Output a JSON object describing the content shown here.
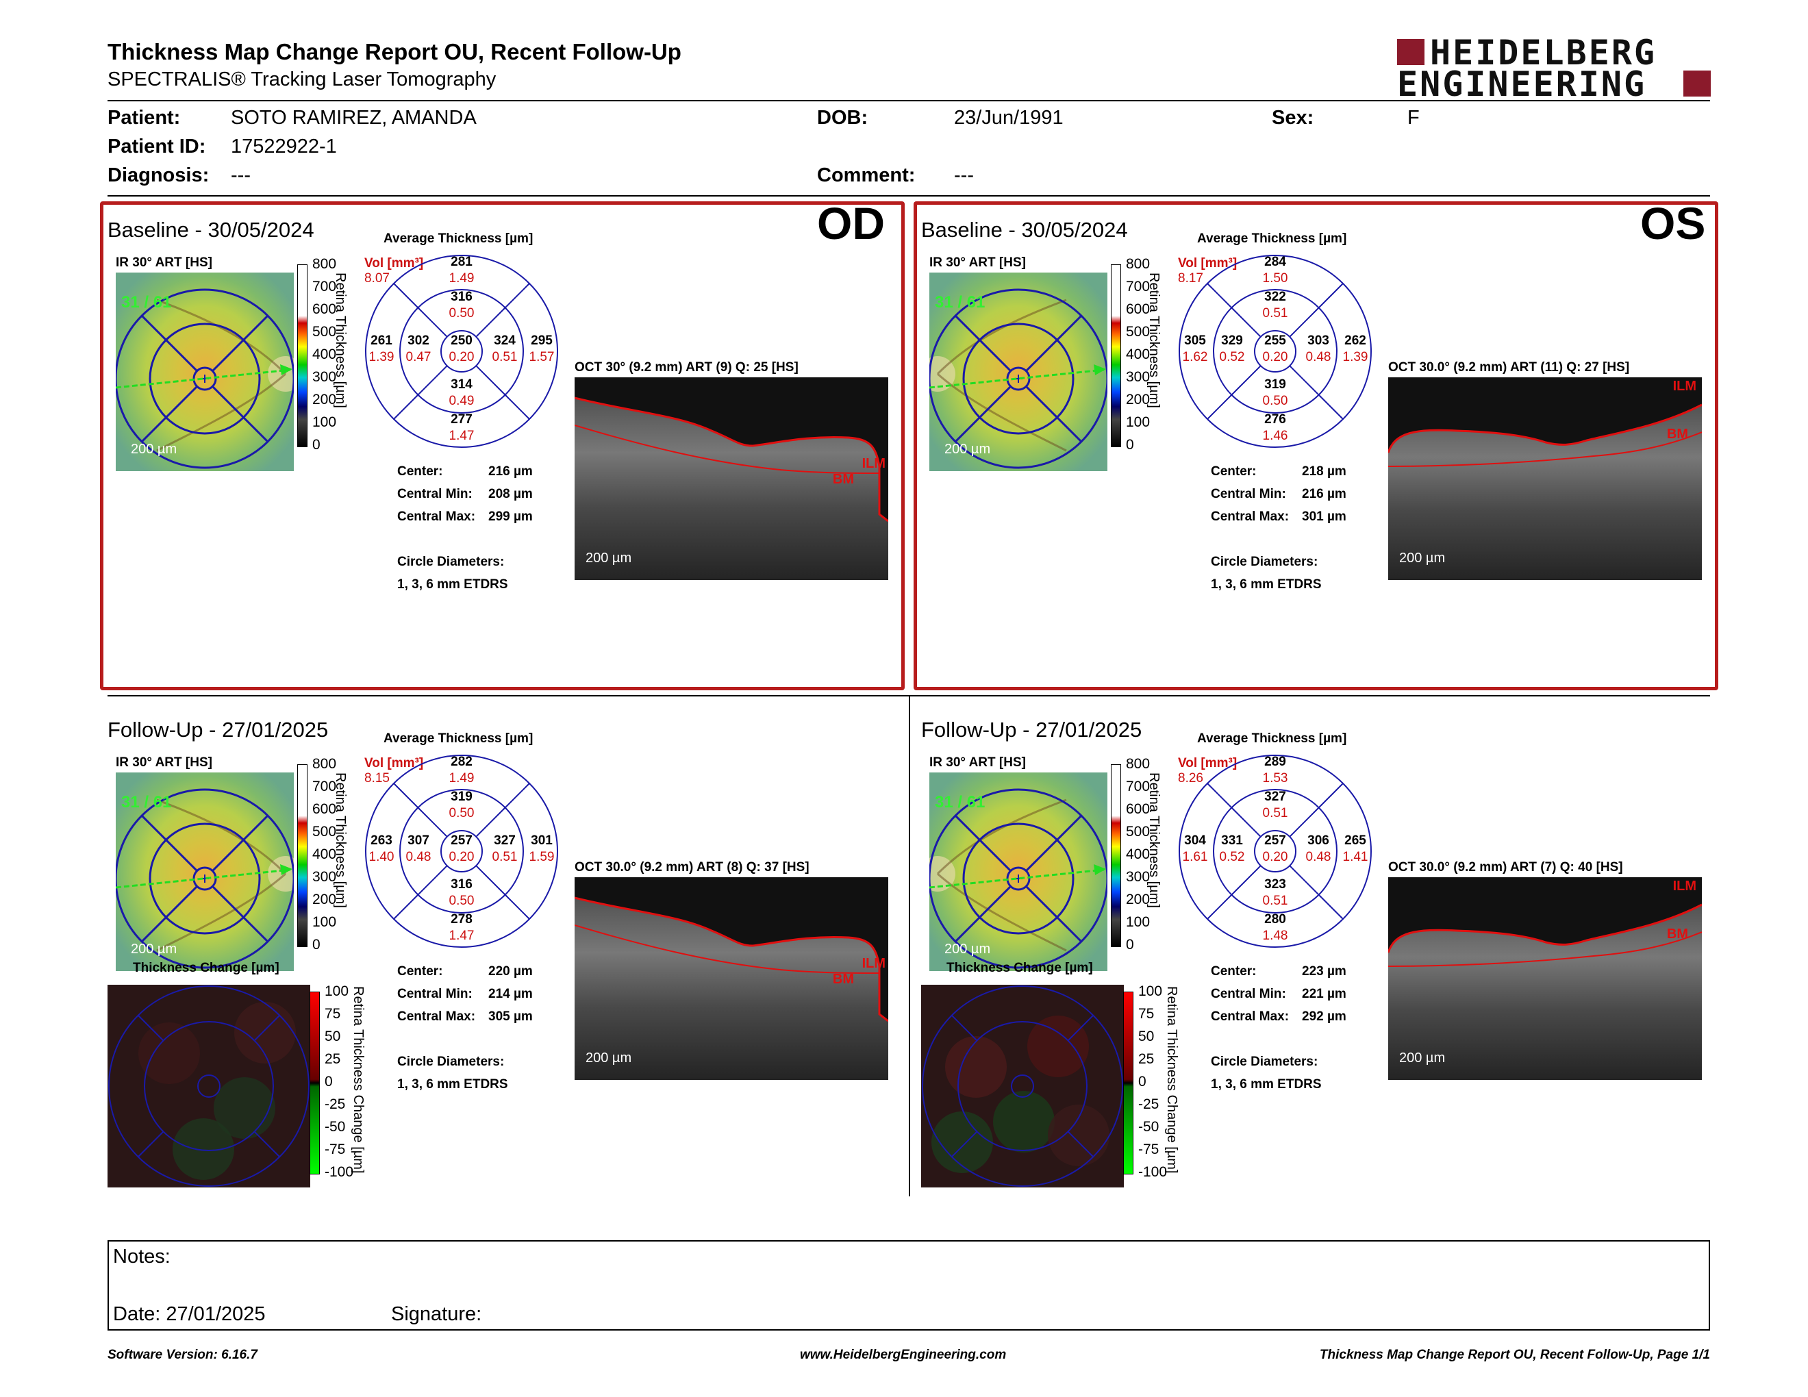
{
  "header": {
    "title": "Thickness Map Change Report OU, Recent Follow-Up",
    "subtitle": "SPECTRALIS® Tracking Laser Tomography",
    "logo_line1": "HEIDELBERG",
    "logo_line2": "ENGINEERING"
  },
  "patient": {
    "patient_label": "Patient:",
    "patient_value": "SOTO RAMIREZ, AMANDA",
    "id_label": "Patient ID:",
    "id_value": "17522922-1",
    "diagnosis_label": "Diagnosis:",
    "diagnosis_value": "---",
    "dob_label": "DOB:",
    "dob_value": "23/Jun/1991",
    "comment_label": "Comment:",
    "comment_value": "---",
    "sex_label": "Sex:",
    "sex_value": "F"
  },
  "common": {
    "avg_thickness": "Average Thickness [µm]",
    "vol_label": "Vol [mm³]",
    "ir_label": "IR 30° ART [HS]",
    "scale_label": "200 µm",
    "center_label": "Center:",
    "min_label": "Central Min:",
    "max_label": "Central Max:",
    "circle_label": "Circle Diameters:",
    "circle_value": "1, 3, 6 mm ETDRS",
    "retina_axis": "Retina Thickness [µm]",
    "change_axis": "Retina Thickness Change [µm]",
    "thickness_change_title": "Thickness Change [µm]",
    "ilm": "ILM",
    "bm": "BM",
    "thickness_ticks": [
      "800",
      "700",
      "600",
      "500",
      "400",
      "300",
      "200",
      "100",
      "0"
    ],
    "change_ticks": [
      "100",
      "75",
      "50",
      "25",
      "0",
      "-25",
      "-50",
      "-75",
      "-100"
    ]
  },
  "panels": {
    "od_base": {
      "title": "Baseline - 30/05/2024",
      "eye": "OD",
      "frame": "31 / 61",
      "oct_label": "OCT 30° (9.2 mm) ART (9) Q: 25 [HS]",
      "vol": "8.07",
      "sectors": {
        "outer_top": [
          "281",
          "1.49"
        ],
        "inner_top": [
          "316",
          "0.50"
        ],
        "outer_left": [
          "261",
          "1.39"
        ],
        "inner_left": [
          "302",
          "0.47"
        ],
        "center": [
          "250",
          "0.20"
        ],
        "inner_right": [
          "324",
          "0.51"
        ],
        "outer_right": [
          "295",
          "1.57"
        ],
        "inner_bottom": [
          "314",
          "0.49"
        ],
        "outer_bottom": [
          "277",
          "1.47"
        ]
      },
      "center": "216 µm",
      "min": "208 µm",
      "max": "299 µm"
    },
    "os_base": {
      "title": "Baseline - 30/05/2024",
      "eye": "OS",
      "frame": "31 / 61",
      "oct_label": "OCT 30.0° (9.2 mm) ART (11) Q: 27 [HS]",
      "vol": "8.17",
      "sectors": {
        "outer_top": [
          "284",
          "1.50"
        ],
        "inner_top": [
          "322",
          "0.51"
        ],
        "outer_left": [
          "305",
          "1.62"
        ],
        "inner_left": [
          "329",
          "0.52"
        ],
        "center": [
          "255",
          "0.20"
        ],
        "inner_right": [
          "303",
          "0.48"
        ],
        "outer_right": [
          "262",
          "1.39"
        ],
        "inner_bottom": [
          "319",
          "0.50"
        ],
        "outer_bottom": [
          "276",
          "1.46"
        ]
      },
      "center": "218 µm",
      "min": "216 µm",
      "max": "301 µm"
    },
    "od_fu": {
      "title": "Follow-Up - 27/01/2025",
      "frame": "31 / 61",
      "oct_label": "OCT 30.0° (9.2 mm) ART (8) Q: 37 [HS]",
      "vol": "8.15",
      "sectors": {
        "outer_top": [
          "282",
          "1.49"
        ],
        "inner_top": [
          "319",
          "0.50"
        ],
        "outer_left": [
          "263",
          "1.40"
        ],
        "inner_left": [
          "307",
          "0.48"
        ],
        "center": [
          "257",
          "0.20"
        ],
        "inner_right": [
          "327",
          "0.51"
        ],
        "outer_right": [
          "301",
          "1.59"
        ],
        "inner_bottom": [
          "316",
          "0.50"
        ],
        "outer_bottom": [
          "278",
          "1.47"
        ]
      },
      "center": "220 µm",
      "min": "214 µm",
      "max": "305 µm"
    },
    "os_fu": {
      "title": "Follow-Up - 27/01/2025",
      "frame": "31 / 61",
      "oct_label": "OCT 30.0° (9.2 mm) ART (7) Q: 40 [HS]",
      "vol": "8.26",
      "sectors": {
        "outer_top": [
          "289",
          "1.53"
        ],
        "inner_top": [
          "327",
          "0.51"
        ],
        "outer_left": [
          "304",
          "1.61"
        ],
        "inner_left": [
          "331",
          "0.52"
        ],
        "center": [
          "257",
          "0.20"
        ],
        "inner_right": [
          "306",
          "0.48"
        ],
        "outer_right": [
          "265",
          "1.41"
        ],
        "inner_bottom": [
          "323",
          "0.51"
        ],
        "outer_bottom": [
          "280",
          "1.48"
        ]
      },
      "center": "223 µm",
      "min": "221 µm",
      "max": "292 µm"
    }
  },
  "notes": {
    "notes_label": "Notes:",
    "date_label": "Date: 27/01/2025",
    "signature_label": "Signature:"
  },
  "footer": {
    "version": "Software Version: 6.16.7",
    "url": "www.HeidelbergEngineering.com",
    "page": "Thickness Map Change Report OU, Recent Follow-Up, Page 1/1"
  },
  "colors": {
    "brand": "#8b1a2b",
    "panel_border": "#b71c1c",
    "grid_blue": "#1a1aa8",
    "volume_red": "#cc1111"
  }
}
